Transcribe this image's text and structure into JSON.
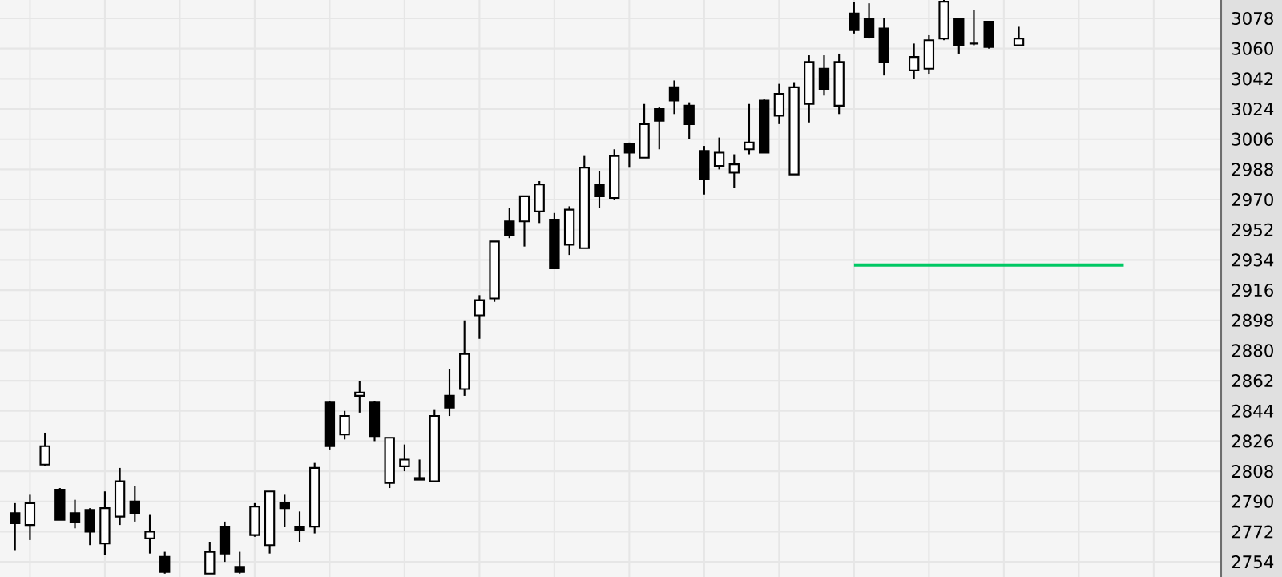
{
  "chart_data": {
    "type": "candlestick",
    "categories": [
      null,
      null,
      null,
      null,
      null,
      null,
      null,
      null,
      null,
      null,
      null,
      null,
      null,
      null,
      null,
      null,
      null,
      null,
      null,
      null,
      null,
      null,
      null,
      null,
      null,
      null,
      null,
      null,
      null,
      null,
      null,
      null,
      null,
      null,
      null,
      null,
      null,
      null,
      null,
      null,
      null,
      null,
      null,
      null,
      null,
      null,
      null,
      null,
      null,
      null,
      null,
      null,
      null,
      null,
      null,
      null,
      null,
      null,
      null,
      null,
      null,
      null,
      null,
      null,
      null,
      null,
      null,
      null,
      null,
      null,
      null,
      null,
      null,
      null,
      null,
      null,
      null,
      null,
      null,
      null,
      null
    ],
    "ohlc": [
      [
        2783,
        2789,
        2761,
        2777
      ],
      [
        2776,
        2794,
        2767,
        2789
      ],
      [
        2812,
        2831,
        2811,
        2823
      ],
      [
        2797,
        2798,
        2779,
        2779
      ],
      [
        2783,
        2791,
        2774,
        2778
      ],
      [
        2785,
        2786,
        2764,
        2772
      ],
      [
        2765,
        2796,
        2758,
        2786
      ],
      [
        2781,
        2810,
        2776,
        2802
      ],
      [
        2790,
        2799,
        2778,
        2783
      ],
      [
        2768,
        2782,
        2759,
        2772
      ],
      [
        2757,
        2760,
        2747,
        2748
      ],
      null,
      null,
      [
        2747,
        2766,
        2747,
        2760
      ],
      [
        2775,
        2778,
        2754,
        2759
      ],
      [
        2751,
        2760,
        2747,
        2748
      ],
      [
        2770,
        2789,
        2769,
        2787
      ],
      [
        2764,
        2796,
        2759,
        2796
      ],
      [
        2789,
        2794,
        2775,
        2786
      ],
      [
        2775,
        2784,
        2766,
        2773
      ],
      [
        2775,
        2813,
        2771,
        2810
      ],
      [
        2849,
        2850,
        2821,
        2823
      ],
      [
        2830,
        2844,
        2827,
        2841
      ],
      [
        2853,
        2862,
        2843,
        2855
      ],
      [
        2849,
        2850,
        2826,
        2829
      ],
      [
        2801,
        2828,
        2798,
        2828
      ],
      [
        2811,
        2824,
        2808,
        2815
      ],
      [
        2803,
        2815,
        2803,
        2804
      ],
      [
        2802,
        2845,
        2802,
        2841
      ],
      [
        2853,
        2869,
        2841,
        2846
      ],
      [
        2857,
        2898,
        2853,
        2878
      ],
      [
        2901,
        2913,
        2887,
        2910
      ],
      [
        2911,
        2945,
        2909,
        2945
      ],
      [
        2957,
        2965,
        2947,
        2949
      ],
      [
        2957,
        2972,
        2942,
        2972
      ],
      [
        2963,
        2981,
        2956,
        2979
      ],
      [
        2958,
        2962,
        2929,
        2929
      ],
      [
        2943,
        2966,
        2937,
        2964
      ],
      [
        2941,
        2996,
        2941,
        2989
      ],
      [
        2979,
        2987,
        2965,
        2972
      ],
      [
        2971,
        3000,
        2970,
        2996
      ],
      [
        3003,
        3004,
        2989,
        2998
      ],
      [
        2995,
        3027,
        2995,
        3015
      ],
      [
        3024,
        3025,
        3000,
        3017
      ],
      [
        3037,
        3041,
        3021,
        3029
      ],
      [
        3026,
        3028,
        3006,
        3015
      ],
      [
        2999,
        3002,
        2973,
        2982
      ],
      [
        2990,
        3007,
        2988,
        2998
      ],
      [
        2986,
        2997,
        2977,
        2991
      ],
      [
        3000,
        3027,
        2997,
        3004
      ],
      [
        3029,
        3030,
        2998,
        2998
      ],
      [
        3020,
        3039,
        3015,
        3033
      ],
      [
        2985,
        3040,
        2985,
        3037
      ],
      [
        3027,
        3056,
        3016,
        3052
      ],
      [
        3048,
        3056,
        3032,
        3036
      ],
      [
        3026,
        3057,
        3021,
        3052
      ],
      [
        3081,
        3088,
        3069,
        3071
      ],
      [
        3078,
        3087,
        3066,
        3067
      ],
      [
        3072,
        3078,
        3044,
        3052
      ],
      null,
      [
        3047,
        3063,
        3042,
        3055
      ],
      [
        3048,
        3068,
        3045,
        3065
      ],
      [
        3066,
        3089,
        3065,
        3088
      ],
      [
        3078,
        3078,
        3057,
        3062
      ],
      [
        3063,
        3083,
        3062,
        3063
      ],
      [
        3076,
        3076,
        3060,
        3061
      ],
      null,
      [
        3062,
        3073,
        3062,
        3066
      ],
      null,
      null,
      null,
      null,
      null,
      null,
      null,
      null,
      null,
      null,
      null,
      null,
      null
    ],
    "series": [
      {
        "type": "line",
        "color": "#00c864",
        "values": [
          null,
          null,
          null,
          null,
          null,
          null,
          null,
          null,
          null,
          null,
          null,
          null,
          null,
          null,
          null,
          null,
          null,
          null,
          null,
          null,
          null,
          null,
          null,
          null,
          null,
          null,
          null,
          null,
          null,
          null,
          null,
          null,
          null,
          null,
          null,
          null,
          null,
          null,
          null,
          null,
          null,
          null,
          null,
          null,
          null,
          null,
          null,
          null,
          null,
          null,
          null,
          null,
          null,
          null,
          null,
          null,
          2931,
          2931,
          2931,
          2931,
          2931,
          2931,
          2931,
          2931,
          2931,
          2931,
          2931,
          2931,
          2931,
          2931,
          2931,
          2931,
          2931,
          2931,
          2931,
          null,
          null,
          null,
          null,
          null,
          null
        ]
      }
    ],
    "ylim": [
      2745,
      3089
    ],
    "yticks": [
      2754,
      2772,
      2790,
      2808,
      2826,
      2844,
      2862,
      2880,
      2898,
      2916,
      2934,
      2952,
      2970,
      2988,
      3006,
      3024,
      3042,
      3060,
      3078
    ],
    "grid": true,
    "tick_labels": "y"
  }
}
